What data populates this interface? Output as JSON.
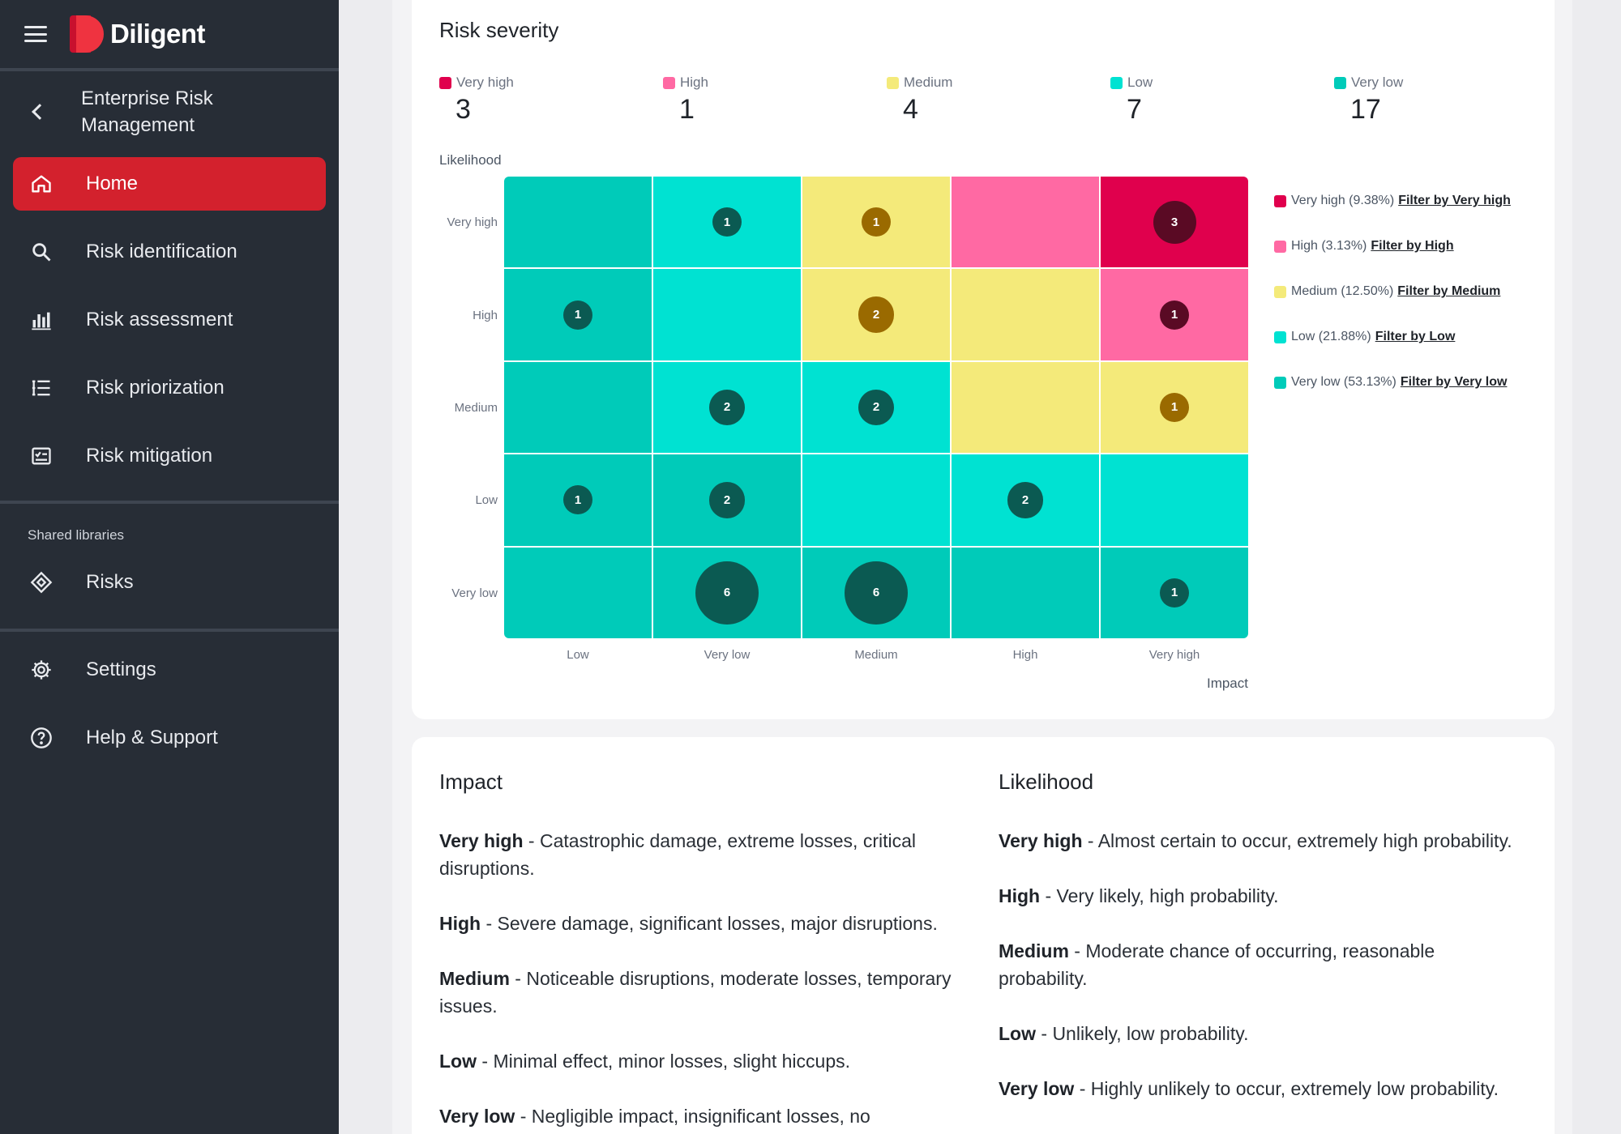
{
  "app": {
    "name": "Diligent"
  },
  "sidebar": {
    "module_title": "Enterprise Risk Management",
    "items": [
      {
        "label": "Home",
        "icon": "home-icon",
        "active": true
      },
      {
        "label": "Risk identification",
        "icon": "search-icon"
      },
      {
        "label": "Risk assessment",
        "icon": "bar-chart-icon"
      },
      {
        "label": "Risk priorization",
        "icon": "list-icon"
      },
      {
        "label": "Risk mitigation",
        "icon": "checklist-icon"
      }
    ],
    "section_label": "Shared libraries",
    "library_items": [
      {
        "label": "Risks",
        "icon": "diamond-icon"
      }
    ],
    "footer_items": [
      {
        "label": "Settings",
        "icon": "gear-icon"
      },
      {
        "label": "Help & Support",
        "icon": "help-icon"
      }
    ]
  },
  "severity": {
    "title": "Risk severity",
    "summary": [
      {
        "label": "Very high",
        "count": "3",
        "color": "#e0004d"
      },
      {
        "label": "High",
        "count": "1",
        "color": "#ff69a3"
      },
      {
        "label": "Medium",
        "count": "4",
        "color": "#f4ea7a"
      },
      {
        "label": "Low",
        "count": "7",
        "color": "#00e2d2"
      },
      {
        "label": "Very low",
        "count": "17",
        "color": "#00cbb9"
      }
    ]
  },
  "chart_data": {
    "type": "heatmap",
    "y_axis_title": "Likelihood",
    "x_axis_title": "Impact",
    "rows": [
      "Very high",
      "High",
      "Medium",
      "Low",
      "Very low"
    ],
    "columns": [
      "Low",
      "Very low",
      "Medium",
      "High",
      "Very high"
    ],
    "cell_levels": [
      [
        "very_low",
        "low",
        "medium",
        "high",
        "very_high"
      ],
      [
        "very_low",
        "low",
        "medium",
        "medium",
        "high"
      ],
      [
        "very_low",
        "low",
        "low",
        "medium",
        "medium"
      ],
      [
        "very_low",
        "very_low",
        "low",
        "low",
        "low"
      ],
      [
        "very_low",
        "very_low",
        "very_low",
        "very_low",
        "very_low"
      ]
    ],
    "counts": [
      [
        0,
        1,
        1,
        0,
        3
      ],
      [
        1,
        0,
        2,
        0,
        1
      ],
      [
        0,
        2,
        2,
        0,
        1
      ],
      [
        1,
        2,
        0,
        2,
        0
      ],
      [
        0,
        6,
        6,
        0,
        1
      ]
    ],
    "level_colors": {
      "very_high": "#e0004d",
      "high": "#ff69a3",
      "medium": "#f4ea7a",
      "low": "#00e2d2",
      "very_low": "#00cbb9"
    },
    "bubble_colors": {
      "very_high": "#5a0a24",
      "high": "#5a0a24",
      "medium": "#9a6a00",
      "low": "#0b5a52",
      "very_low": "#0b5a52"
    },
    "legend": [
      {
        "label": "Very high (9.38%)",
        "link": "Filter by Very high",
        "color": "#e0004d"
      },
      {
        "label": "High (3.13%)",
        "link": "Filter by High",
        "color": "#ff69a3"
      },
      {
        "label": "Medium (12.50%)",
        "link": "Filter by Medium",
        "color": "#f4ea7a"
      },
      {
        "label": "Low (21.88%)",
        "link": "Filter by Low",
        "color": "#00e2d2"
      },
      {
        "label": "Very low (53.13%)",
        "link": "Filter by Very low",
        "color": "#00cbb9"
      }
    ]
  },
  "descriptions": {
    "impact": {
      "title": "Impact",
      "items": [
        {
          "term": "Very high",
          "text": " - Catastrophic damage, extreme losses, critical disruptions."
        },
        {
          "term": "High",
          "text": " - Severe damage, significant losses, major disruptions."
        },
        {
          "term": "Medium",
          "text": " - Noticeable disruptions, moderate losses, temporary issues."
        },
        {
          "term": "Low",
          "text": " - Minimal effect, minor losses, slight hiccups."
        },
        {
          "term": "Very low",
          "text": " - Negligible impact, insignificant losses, no disruptions."
        }
      ]
    },
    "likelihood": {
      "title": "Likelihood",
      "items": [
        {
          "term": "Very high",
          "text": " - Almost certain to occur, extremely high probability."
        },
        {
          "term": "High",
          "text": " - Very likely, high probability."
        },
        {
          "term": "Medium",
          "text": " - Moderate chance of occurring, reasonable probability."
        },
        {
          "term": "Low",
          "text": " - Unlikely, low probability."
        },
        {
          "term": "Very low",
          "text": " - Highly unlikely to occur, extremely low probability."
        }
      ]
    }
  }
}
